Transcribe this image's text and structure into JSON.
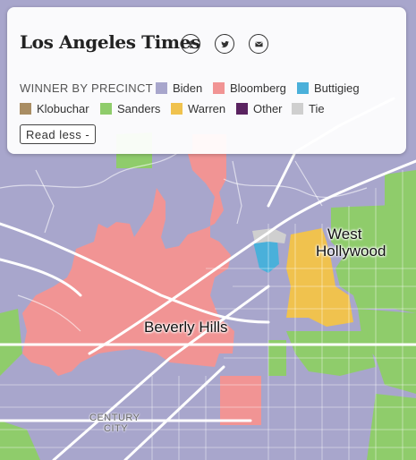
{
  "brand": "Los Angeles Times",
  "share_icons": [
    "facebook-icon",
    "twitter-icon",
    "email-icon"
  ],
  "legend": {
    "title": "WINNER BY PRECINCT",
    "items": [
      {
        "label": "Biden",
        "color": "#a8a6cc"
      },
      {
        "label": "Bloomberg",
        "color": "#f19494"
      },
      {
        "label": "Buttigieg",
        "color": "#4ab0da"
      },
      {
        "label": "Klobuchar",
        "color": "#a98d63"
      },
      {
        "label": "Sanders",
        "color": "#8fcc6b"
      },
      {
        "label": "Warren",
        "color": "#f0c24e"
      },
      {
        "label": "Other",
        "color": "#5a2360"
      },
      {
        "label": "Tie",
        "color": "#cfcfcf"
      }
    ]
  },
  "read_less": "Read less -",
  "places": {
    "west_hollywood_1": "West",
    "west_hollywood_2": "Hollywood",
    "beverly_hills": "Beverly Hills",
    "century_city_1": "CENTURY",
    "century_city_2": "CITY"
  }
}
